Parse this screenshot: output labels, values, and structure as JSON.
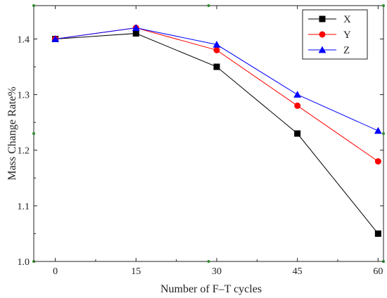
{
  "chart_data": {
    "type": "line",
    "xlabel": "Number of F–T cycles",
    "ylabel": "Mass Change Rate%",
    "x": [
      0,
      15,
      30,
      45,
      60
    ],
    "x_ticks": [
      "0",
      "15",
      "30",
      "45",
      "60"
    ],
    "y_ticks": [
      "1.0",
      "1.1",
      "1.2",
      "1.3",
      "1.4"
    ],
    "xlim": [
      -4,
      61
    ],
    "ylim": [
      1.0,
      1.46
    ],
    "grid": false,
    "legend_position": "top-right",
    "series": [
      {
        "name": "X",
        "color": "#000000",
        "marker": "square",
        "values": [
          1.4,
          1.41,
          1.35,
          1.23,
          1.05
        ]
      },
      {
        "name": "Y",
        "color": "#ff0000",
        "marker": "circle",
        "values": [
          1.4,
          1.42,
          1.38,
          1.28,
          1.18
        ]
      },
      {
        "name": "Z",
        "color": "#0000ff",
        "marker": "triangle",
        "values": [
          1.4,
          1.42,
          1.39,
          1.3,
          1.235
        ]
      }
    ]
  }
}
